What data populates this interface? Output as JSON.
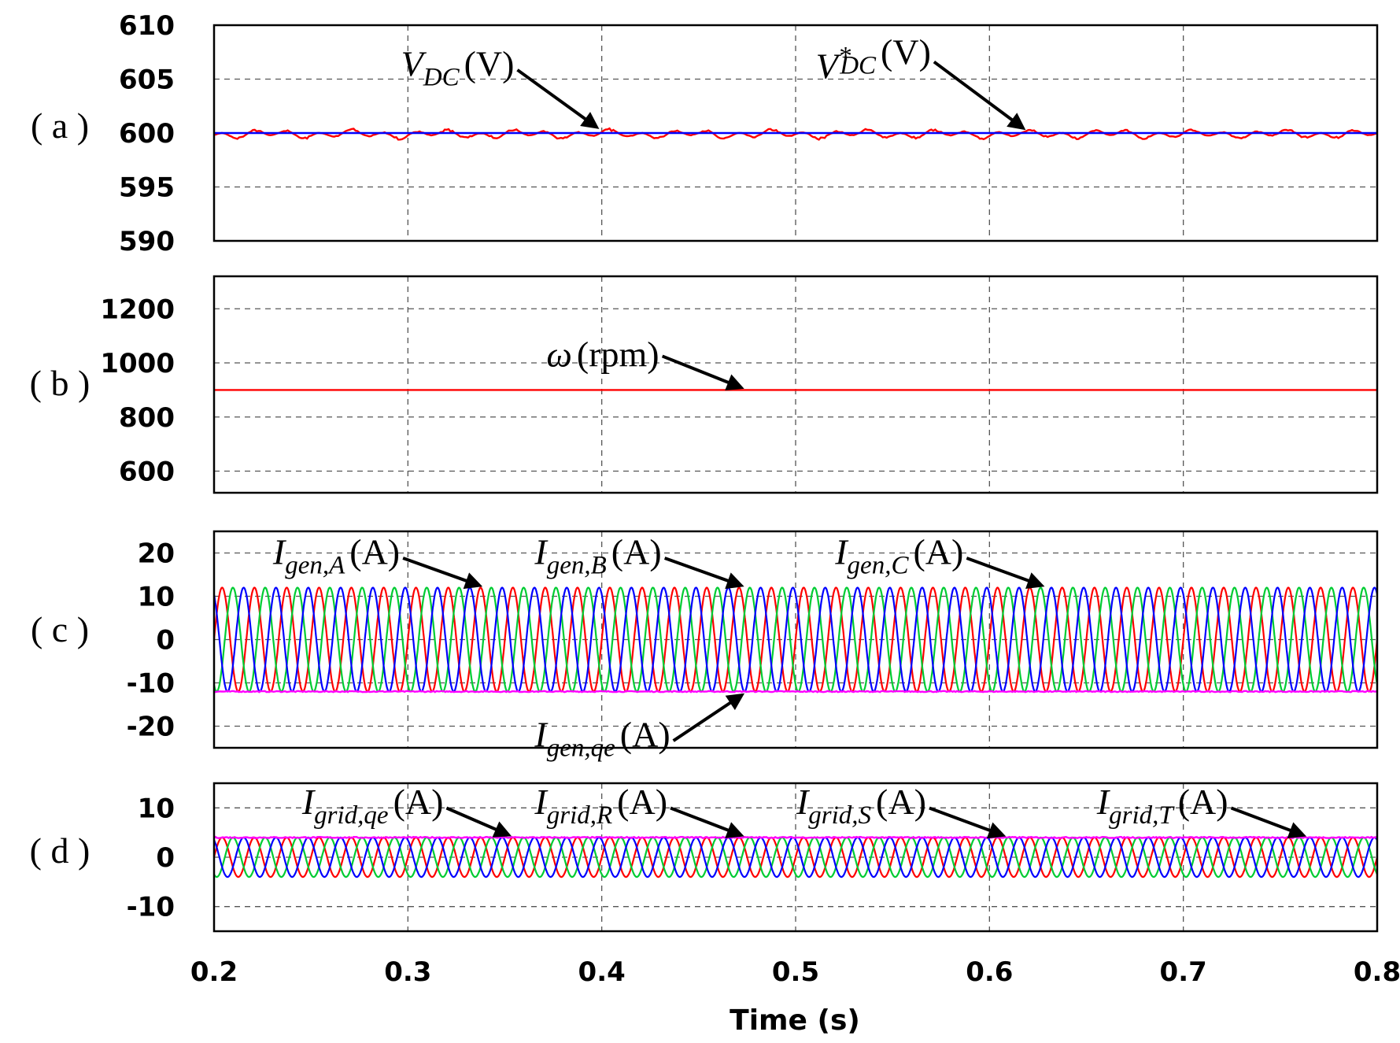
{
  "chart_data": [
    {
      "type": "line",
      "panel_label": "( a )",
      "ylim": [
        590,
        610
      ],
      "yticks": [
        610,
        605,
        600,
        595,
        590
      ],
      "grid": true,
      "series": [
        {
          "name": "V_DC (V)",
          "color": "#ff0000",
          "description_values": {
            "mean": 600,
            "ripple_amplitude": 0.5
          }
        },
        {
          "name": "V*_DC (V)",
          "color": "#0000ff",
          "values": [
            600,
            600
          ]
        }
      ],
      "annotations": [
        {
          "base": "V",
          "sub": "DC",
          "sup": "",
          "unit": "(V)",
          "target": [
            0.4,
            600.2
          ]
        },
        {
          "base": "V",
          "sub": "DC",
          "sup": "*",
          "unit": "(V)",
          "target": [
            0.62,
            600.1
          ]
        }
      ]
    },
    {
      "type": "line",
      "panel_label": "( b )",
      "ylim": [
        520,
        1320
      ],
      "yticks": [
        1200,
        1000,
        800,
        600
      ],
      "grid": true,
      "series": [
        {
          "name": "ω (rpm)",
          "color": "#ff0000",
          "values": [
            900,
            900
          ]
        }
      ],
      "annotations": [
        {
          "base": "ω",
          "sub": "",
          "sup": "",
          "unit": "(rpm)",
          "target": [
            0.475,
            900
          ]
        }
      ]
    },
    {
      "type": "line",
      "panel_label": "( c )",
      "ylim": [
        -25,
        25
      ],
      "yticks": [
        20,
        10,
        0,
        -10,
        -20
      ],
      "grid": true,
      "series": [
        {
          "name": "I_gen,A (A)",
          "color": "#ff0000",
          "amplitude": 12,
          "frequency_hz": 60,
          "phase_deg": 0
        },
        {
          "name": "I_gen,B (A)",
          "color": "#00cc33",
          "amplitude": 12,
          "frequency_hz": 60,
          "phase_deg": -120
        },
        {
          "name": "I_gen,C (A)",
          "color": "#0000ff",
          "amplitude": 12,
          "frequency_hz": 60,
          "phase_deg": 120
        },
        {
          "name": "I_gen,qe (A)",
          "color": "#ff00ff",
          "values": [
            -12,
            -12
          ]
        }
      ],
      "annotations": [
        {
          "base": "I",
          "sub": "gen,A",
          "sup": "",
          "unit": "(A)",
          "target": [
            0.34,
            12
          ]
        },
        {
          "base": "I",
          "sub": "gen,B",
          "sup": "",
          "unit": "(A)",
          "target": [
            0.475,
            12
          ]
        },
        {
          "base": "I",
          "sub": "gen,C",
          "sup": "",
          "unit": "(A)",
          "target": [
            0.63,
            12
          ]
        },
        {
          "base": "I",
          "sub": "gen,qe",
          "sup": "",
          "unit": "(A)",
          "target": [
            0.475,
            -12
          ]
        }
      ]
    },
    {
      "type": "line",
      "panel_label": "( d )",
      "ylim": [
        -15,
        15
      ],
      "yticks": [
        10,
        0,
        -10
      ],
      "grid": true,
      "series": [
        {
          "name": "I_grid,R (A)",
          "color": "#ff0000",
          "amplitude": 4,
          "frequency_hz": 60,
          "phase_deg": 0
        },
        {
          "name": "I_grid,S (A)",
          "color": "#00cc33",
          "amplitude": 4,
          "frequency_hz": 60,
          "phase_deg": -120
        },
        {
          "name": "I_grid,T (A)",
          "color": "#0000ff",
          "amplitude": 4,
          "frequency_hz": 60,
          "phase_deg": 120
        },
        {
          "name": "I_grid,qe (A)",
          "color": "#ff00ff",
          "values": [
            4,
            4
          ]
        }
      ],
      "annotations": [
        {
          "base": "I",
          "sub": "grid,qe",
          "sup": "",
          "unit": "(A)",
          "target": [
            0.355,
            4
          ]
        },
        {
          "base": "I",
          "sub": "grid,R",
          "sup": "",
          "unit": "(A)",
          "target": [
            0.475,
            4
          ]
        },
        {
          "base": "I",
          "sub": "grid,S",
          "sup": "",
          "unit": "(A)",
          "target": [
            0.61,
            4
          ]
        },
        {
          "base": "I",
          "sub": "grid,T",
          "sup": "",
          "unit": "(A)",
          "target": [
            0.765,
            4
          ]
        }
      ]
    }
  ],
  "x_axis": {
    "xlim": [
      0.2,
      0.8
    ],
    "ticks": [
      "0.2",
      "0.3",
      "0.4",
      "0.5",
      "0.6",
      "0.7",
      "0.8"
    ],
    "label": "Time (s)"
  }
}
